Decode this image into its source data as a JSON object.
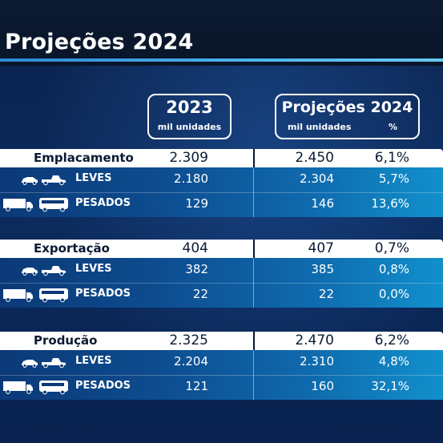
{
  "title": "Projeções 2024",
  "columns": {
    "col2023": {
      "year": "2023",
      "unit": "mil unidades"
    },
    "proj": {
      "label": "Projeções 2024",
      "unit": "mil unidades",
      "pct": "%"
    }
  },
  "sections": [
    {
      "label": "Emplacamento",
      "v2023": "2.309",
      "vproj": "2.450",
      "vpct": "6,1%",
      "rows": [
        {
          "label": "LEVES",
          "icon": "car-pickup-icon",
          "v2023": "2.180",
          "vproj": "2.304",
          "vpct": "5,7%"
        },
        {
          "label": "PESADOS",
          "icon": "truck-bus-icon",
          "v2023": "129",
          "vproj": "146",
          "vpct": "13,6%"
        }
      ]
    },
    {
      "label": "Exportação",
      "v2023": "404",
      "vproj": "407",
      "vpct": "0,7%",
      "rows": [
        {
          "label": "LEVES",
          "icon": "car-pickup-icon",
          "v2023": "382",
          "vproj": "385",
          "vpct": "0,8%"
        },
        {
          "label": "PESADOS",
          "icon": "truck-bus-icon",
          "v2023": "22",
          "vproj": "22",
          "vpct": "0,0%"
        }
      ]
    },
    {
      "label": "Produção",
      "v2023": "2.325",
      "vproj": "2.470",
      "vpct": "6,2%",
      "rows": [
        {
          "label": "LEVES",
          "icon": "car-pickup-icon",
          "v2023": "2.204",
          "vproj": "2.310",
          "vpct": "4,8%"
        },
        {
          "label": "PESADOS",
          "icon": "truck-bus-icon",
          "v2023": "121",
          "vproj": "160",
          "vpct": "32,1%"
        }
      ]
    }
  ],
  "colors": {
    "background": "#0a1a34",
    "accent_line": "#4fb6ee",
    "header_fill": "#ffffff"
  }
}
